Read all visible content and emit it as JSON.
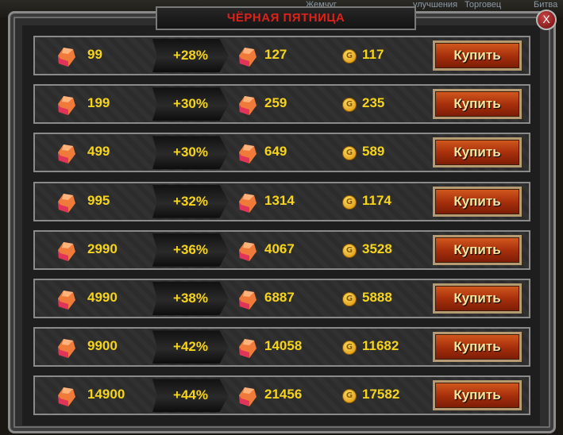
{
  "background_labels": [
    "Жемчуг",
    "улучшения",
    "Торговец",
    "Битва"
  ],
  "dialog": {
    "title": "ЧЁРНАЯ ПЯТНИЦА",
    "close_label": "X"
  },
  "colors": {
    "title": "#e0211a",
    "value_text": "#f7d41c",
    "buy_button": "#a8300c"
  },
  "offers": [
    {
      "gems": "99",
      "bonus": "+28%",
      "total": "127",
      "price": "117",
      "buy": "Купить"
    },
    {
      "gems": "199",
      "bonus": "+30%",
      "total": "259",
      "price": "235",
      "buy": "Купить"
    },
    {
      "gems": "499",
      "bonus": "+30%",
      "total": "649",
      "price": "589",
      "buy": "Купить"
    },
    {
      "gems": "995",
      "bonus": "+32%",
      "total": "1314",
      "price": "1174",
      "buy": "Купить"
    },
    {
      "gems": "2990",
      "bonus": "+36%",
      "total": "4067",
      "price": "3528",
      "buy": "Купить"
    },
    {
      "gems": "4990",
      "bonus": "+38%",
      "total": "6887",
      "price": "5888",
      "buy": "Купить"
    },
    {
      "gems": "9900",
      "bonus": "+42%",
      "total": "14058",
      "price": "11682",
      "buy": "Купить"
    },
    {
      "gems": "14900",
      "bonus": "+44%",
      "total": "21456",
      "price": "17582",
      "buy": "Купить"
    }
  ],
  "icons": {
    "gem": "ruby-crystal-icon",
    "coin": "gold-coin-icon",
    "coin_letter": "G"
  }
}
